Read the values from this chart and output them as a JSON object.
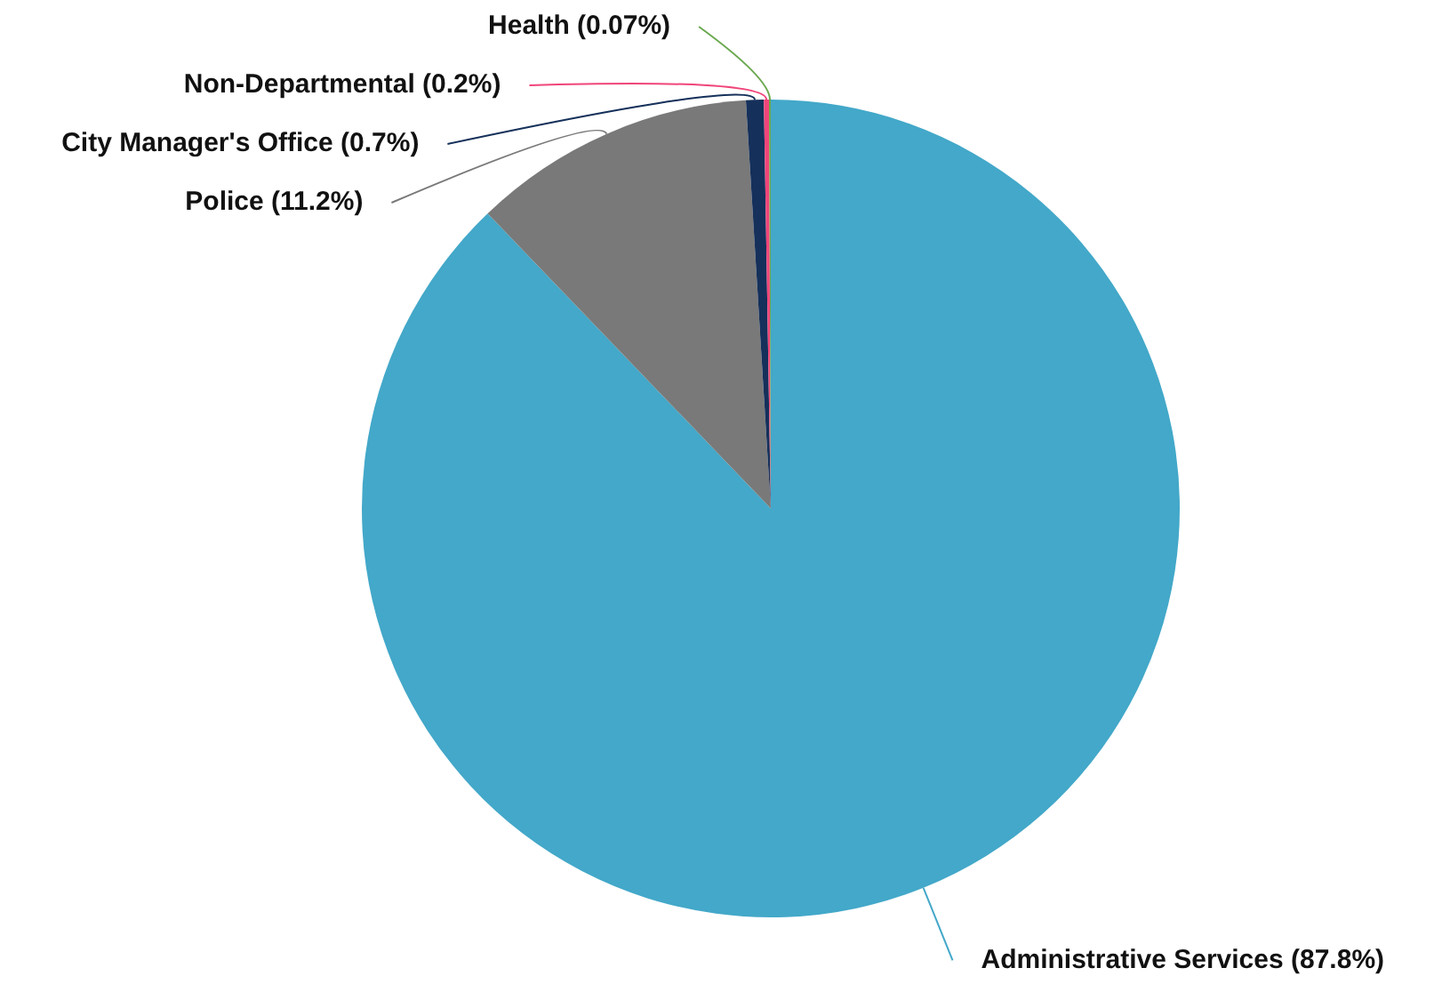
{
  "chart_data": {
    "type": "pie",
    "categories": [
      "Administrative Services",
      "Police",
      "City Manager's Office",
      "Non-Departmental",
      "Health"
    ],
    "values": [
      87.8,
      11.2,
      0.7,
      0.2,
      0.07
    ],
    "colors": [
      "#43a8c9",
      "#797979",
      "#15305a",
      "#f0457a",
      "#6aa84f"
    ],
    "value_labels": [
      "(87.8%)",
      "(11.2%)",
      "(0.7%)",
      "(0.2%)",
      "(0.07%)"
    ]
  }
}
